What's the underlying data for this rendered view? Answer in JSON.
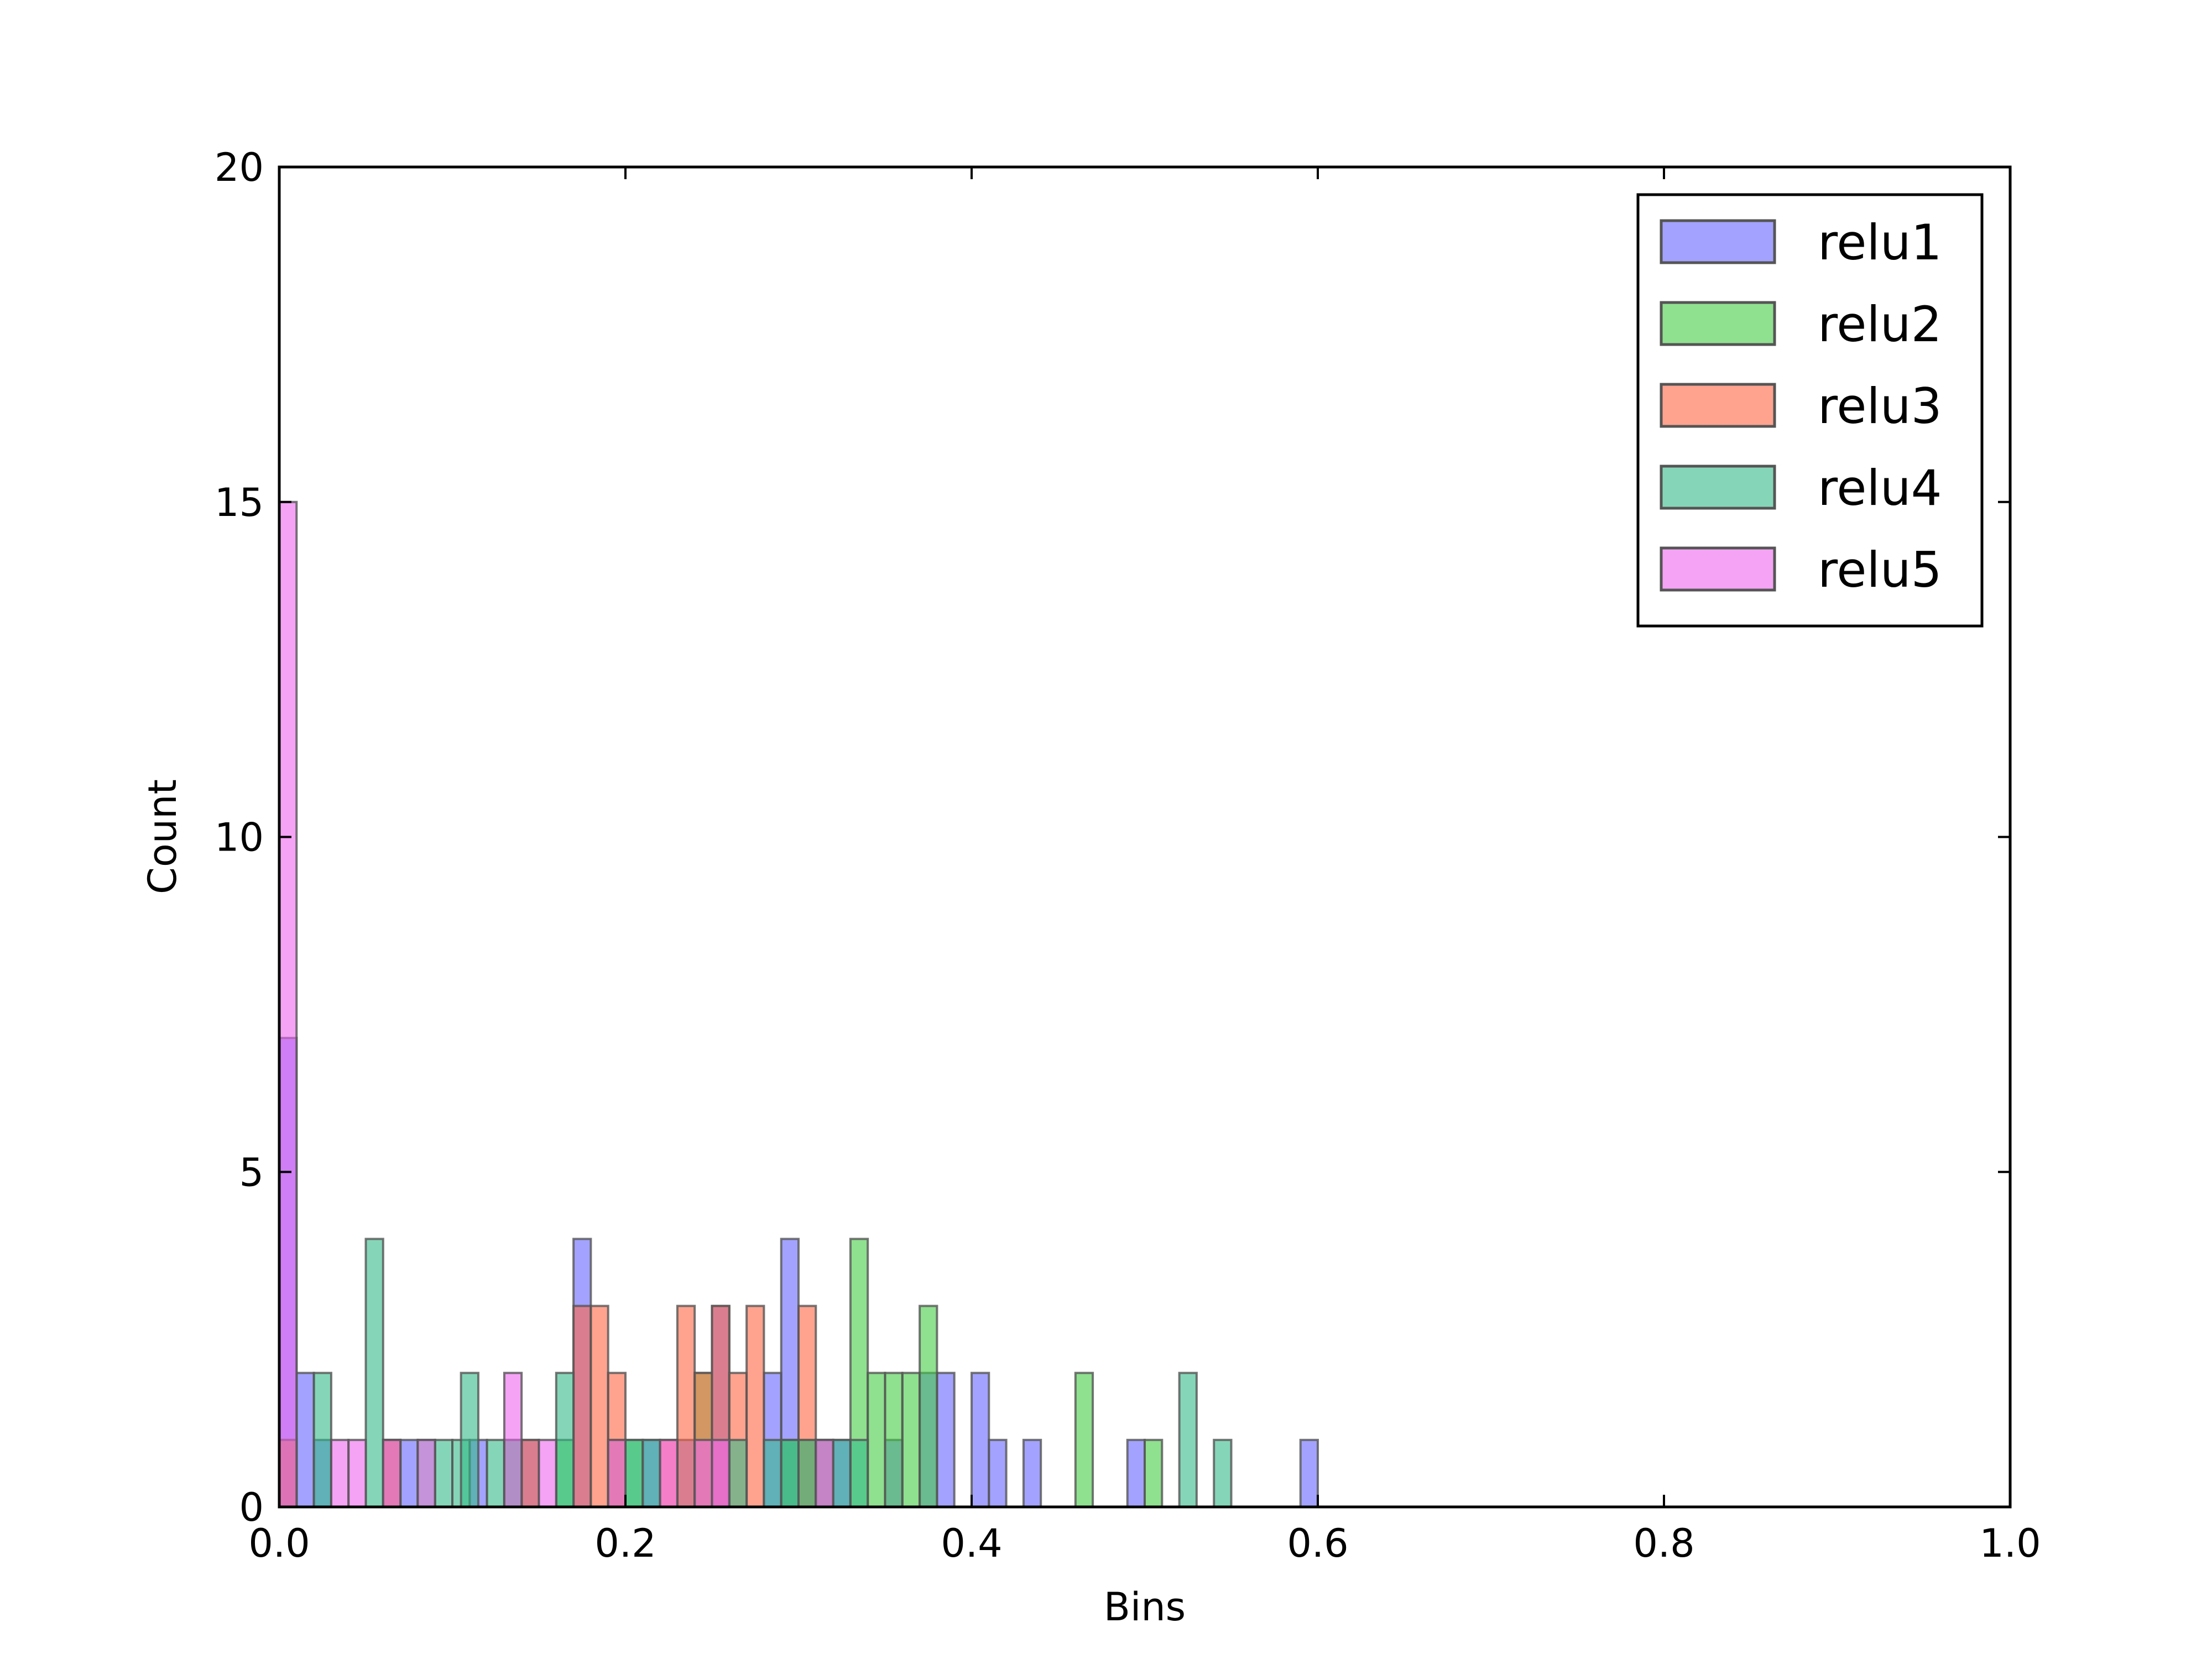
{
  "chart_data": {
    "type": "bar",
    "title": "",
    "xlabel": "Bins",
    "ylabel": "Count",
    "xlim": [
      0.0,
      1.0
    ],
    "ylim": [
      0,
      20
    ],
    "x_ticks": [
      "0.0",
      "0.2",
      "0.4",
      "0.6",
      "0.8",
      "1.0"
    ],
    "y_ticks": [
      "0",
      "5",
      "10",
      "15",
      "20"
    ],
    "bin_width": 0.01,
    "legend_position": "top-right",
    "grid": false,
    "series": [
      {
        "name": "relu1",
        "color": "#6666ff",
        "bins": [
          [
            0.0,
            7
          ],
          [
            0.01,
            2
          ],
          [
            0.02,
            1
          ],
          [
            0.07,
            1
          ],
          [
            0.11,
            1
          ],
          [
            0.14,
            1
          ],
          [
            0.17,
            4
          ],
          [
            0.21,
            1
          ],
          [
            0.23,
            1
          ],
          [
            0.25,
            3
          ],
          [
            0.28,
            2
          ],
          [
            0.29,
            4
          ],
          [
            0.32,
            1
          ],
          [
            0.35,
            1
          ],
          [
            0.37,
            2
          ],
          [
            0.38,
            2
          ],
          [
            0.4,
            2
          ],
          [
            0.41,
            1
          ],
          [
            0.43,
            1
          ],
          [
            0.49,
            1
          ],
          [
            0.59,
            1
          ]
        ]
      },
      {
        "name": "relu2",
        "color": "#44cc44",
        "bins": [
          [
            0.0,
            1
          ],
          [
            0.06,
            1
          ],
          [
            0.13,
            1
          ],
          [
            0.16,
            1
          ],
          [
            0.19,
            1
          ],
          [
            0.2,
            1
          ],
          [
            0.24,
            2
          ],
          [
            0.29,
            1
          ],
          [
            0.3,
            1
          ],
          [
            0.33,
            4
          ],
          [
            0.34,
            2
          ],
          [
            0.35,
            2
          ],
          [
            0.36,
            2
          ],
          [
            0.37,
            3
          ],
          [
            0.46,
            2
          ],
          [
            0.5,
            1
          ]
        ]
      },
      {
        "name": "relu3",
        "color": "#ff6644",
        "bins": [
          [
            0.0,
            1
          ],
          [
            0.06,
            1
          ],
          [
            0.14,
            1
          ],
          [
            0.17,
            3
          ],
          [
            0.18,
            3
          ],
          [
            0.19,
            2
          ],
          [
            0.22,
            1
          ],
          [
            0.23,
            3
          ],
          [
            0.24,
            2
          ],
          [
            0.25,
            3
          ],
          [
            0.26,
            2
          ],
          [
            0.27,
            3
          ],
          [
            0.3,
            3
          ],
          [
            0.31,
            1
          ]
        ]
      },
      {
        "name": "relu4",
        "color": "#33bb88",
        "bins": [
          [
            0.02,
            2
          ],
          [
            0.05,
            4
          ],
          [
            0.08,
            1
          ],
          [
            0.09,
            1
          ],
          [
            0.1,
            1
          ],
          [
            0.105,
            2
          ],
          [
            0.12,
            1
          ],
          [
            0.13,
            1
          ],
          [
            0.16,
            2
          ],
          [
            0.2,
            1
          ],
          [
            0.21,
            1
          ],
          [
            0.26,
            1
          ],
          [
            0.28,
            1
          ],
          [
            0.29,
            1
          ],
          [
            0.3,
            1
          ],
          [
            0.31,
            1
          ],
          [
            0.32,
            1
          ],
          [
            0.33,
            1
          ],
          [
            0.52,
            2
          ],
          [
            0.54,
            1
          ]
        ]
      },
      {
        "name": "relu5",
        "color": "#ee66ee",
        "bins": [
          [
            0.0,
            15
          ],
          [
            0.03,
            1
          ],
          [
            0.04,
            1
          ],
          [
            0.06,
            1
          ],
          [
            0.08,
            1
          ],
          [
            0.13,
            2
          ],
          [
            0.15,
            1
          ],
          [
            0.19,
            1
          ],
          [
            0.22,
            1
          ],
          [
            0.24,
            1
          ],
          [
            0.25,
            1
          ],
          [
            0.31,
            1
          ]
        ]
      }
    ]
  }
}
